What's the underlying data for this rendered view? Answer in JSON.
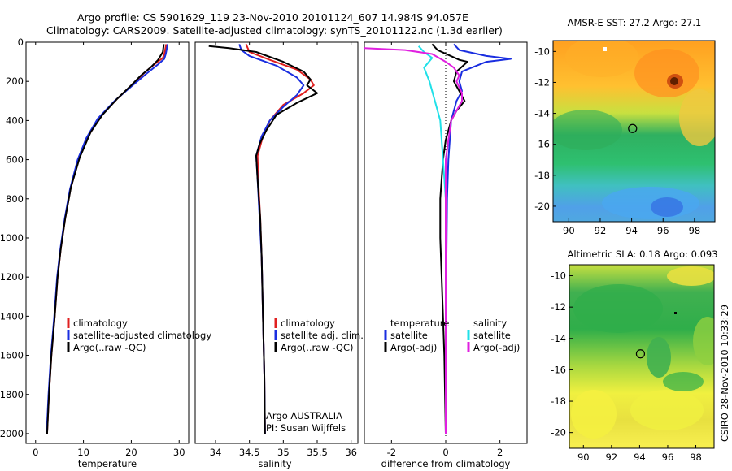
{
  "title_line1": "Argo profile: CS 5901629_119 23-Nov-2010 20101124_607 14.984S 94.057E",
  "title_line2": "Climatology: CARS2009. Satellite-adjusted climatology: synTS_20101122.nc (1.3d earlier)",
  "side_stamp": "CSIRO 28-Nov-2010 10:33:29",
  "argo_note_line1": "Argo AUSTRALIA",
  "argo_note_line2": "PI: Susan Wijffels",
  "colors": {
    "climatology": "#e02020",
    "satellite": "#1a2ee0",
    "argo": "#000000",
    "satellite_cyan": "#20e0e8",
    "argo_magenta": "#e020e0"
  },
  "chart_data": [
    {
      "type": "line",
      "xlabel": "temperature",
      "xlim": [
        -2,
        32
      ],
      "ylim": [
        2050,
        0
      ],
      "xticks": [
        0,
        10,
        20,
        30
      ],
      "yticks": [
        0,
        200,
        400,
        600,
        800,
        1000,
        1200,
        1400,
        1600,
        1800,
        2000
      ],
      "legend": [
        {
          "label": "climatology",
          "color": "#e02020"
        },
        {
          "label": "satellite-adjusted climatology",
          "color": "#1a2ee0"
        },
        {
          "label": "Argo(..raw -QC)",
          "color": "#000000"
        }
      ],
      "series": [
        {
          "name": "climatology",
          "color": "#e02020",
          "points": [
            [
              27.3,
              10
            ],
            [
              26.9,
              60
            ],
            [
              26.6,
              80
            ],
            [
              25.0,
              110
            ],
            [
              23.0,
              150
            ],
            [
              20.5,
              210
            ],
            [
              17.0,
              290
            ],
            [
              13.5,
              380
            ],
            [
              11.0,
              480
            ],
            [
              9.0,
              600
            ],
            [
              7.3,
              750
            ],
            [
              6.2,
              900
            ],
            [
              5.3,
              1050
            ],
            [
              4.6,
              1200
            ],
            [
              4.0,
              1400
            ],
            [
              3.3,
              1600
            ],
            [
              2.8,
              1800
            ],
            [
              2.4,
              2000
            ]
          ]
        },
        {
          "name": "satellite-adjusted climatology",
          "color": "#1a2ee0",
          "points": [
            [
              27.6,
              10
            ],
            [
              27.2,
              60
            ],
            [
              26.9,
              85
            ],
            [
              25.5,
              115
            ],
            [
              23.2,
              160
            ],
            [
              20.3,
              220
            ],
            [
              16.5,
              300
            ],
            [
              13.0,
              390
            ],
            [
              10.6,
              490
            ],
            [
              8.8,
              600
            ],
            [
              7.2,
              750
            ],
            [
              6.1,
              900
            ],
            [
              5.2,
              1050
            ],
            [
              4.5,
              1200
            ],
            [
              3.9,
              1400
            ],
            [
              3.2,
              1600
            ],
            [
              2.7,
              1800
            ],
            [
              2.3,
              2000
            ]
          ]
        },
        {
          "name": "Argo(..raw -QC)",
          "color": "#000000",
          "points": [
            [
              26.8,
              10
            ],
            [
              26.6,
              50
            ],
            [
              25.6,
              90
            ],
            [
              24.0,
              130
            ],
            [
              22.0,
              170
            ],
            [
              20.0,
              220
            ],
            [
              17.0,
              290
            ],
            [
              14.0,
              370
            ],
            [
              11.5,
              460
            ],
            [
              9.2,
              590
            ],
            [
              7.4,
              740
            ],
            [
              6.2,
              900
            ],
            [
              5.3,
              1050
            ],
            [
              4.6,
              1200
            ],
            [
              4.0,
              1400
            ],
            [
              3.3,
              1600
            ],
            [
              2.8,
              1800
            ],
            [
              2.4,
              2000
            ]
          ]
        }
      ]
    },
    {
      "type": "line",
      "xlabel": "salinity",
      "xlim": [
        33.7,
        36.1
      ],
      "ylim": [
        2050,
        0
      ],
      "xticks": [
        34,
        34.5,
        35,
        35.5,
        36
      ],
      "legend": [
        {
          "label": "climatology",
          "color": "#e02020"
        },
        {
          "label": "satellite adj. clim.",
          "color": "#1a2ee0"
        },
        {
          "label": "Argo(..raw -QC)",
          "color": "#000000"
        }
      ],
      "series": [
        {
          "name": "climatology",
          "color": "#e02020",
          "points": [
            [
              34.45,
              10
            ],
            [
              34.5,
              50
            ],
            [
              34.8,
              90
            ],
            [
              35.2,
              140
            ],
            [
              35.4,
              190
            ],
            [
              35.45,
              220
            ],
            [
              35.3,
              260
            ],
            [
              35.0,
              320
            ],
            [
              34.8,
              400
            ],
            [
              34.7,
              480
            ],
            [
              34.62,
              580
            ],
            [
              34.63,
              700
            ],
            [
              34.66,
              900
            ],
            [
              34.68,
              1100
            ],
            [
              34.7,
              1400
            ],
            [
              34.72,
              1700
            ],
            [
              34.73,
              2000
            ]
          ]
        },
        {
          "name": "satellite adj. clim.",
          "color": "#1a2ee0",
          "points": [
            [
              34.35,
              10
            ],
            [
              34.38,
              40
            ],
            [
              34.5,
              70
            ],
            [
              34.9,
              120
            ],
            [
              35.2,
              180
            ],
            [
              35.3,
              220
            ],
            [
              35.2,
              270
            ],
            [
              35.0,
              330
            ],
            [
              34.8,
              400
            ],
            [
              34.68,
              480
            ],
            [
              34.6,
              580
            ],
            [
              34.62,
              700
            ],
            [
              34.65,
              900
            ],
            [
              34.68,
              1100
            ],
            [
              34.7,
              1400
            ],
            [
              34.72,
              1700
            ],
            [
              34.73,
              2000
            ]
          ]
        },
        {
          "name": "Argo(..raw -QC)",
          "color": "#000000",
          "points": [
            [
              33.9,
              20
            ],
            [
              34.2,
              30
            ],
            [
              34.6,
              50
            ],
            [
              35.0,
              100
            ],
            [
              35.3,
              150
            ],
            [
              35.4,
              190
            ],
            [
              35.35,
              220
            ],
            [
              35.5,
              260
            ],
            [
              35.2,
              310
            ],
            [
              34.9,
              370
            ],
            [
              34.75,
              450
            ],
            [
              34.65,
              520
            ],
            [
              34.6,
              580
            ],
            [
              34.62,
              700
            ],
            [
              34.66,
              900
            ],
            [
              34.68,
              1100
            ],
            [
              34.7,
              1400
            ],
            [
              34.72,
              1700
            ],
            [
              34.73,
              2000
            ]
          ]
        }
      ]
    },
    {
      "type": "line",
      "xlabel": "difference from climatology",
      "xlim": [
        -3,
        3
      ],
      "ylim": [
        2050,
        0
      ],
      "xticks": [
        -2,
        0,
        2
      ],
      "legend": [
        {
          "label": "temperature",
          "color": ""
        },
        {
          "label": "satellite",
          "color": "#1a2ee0"
        },
        {
          "label": "Argo(-adj)",
          "color": "#000000"
        },
        {
          "label": "salinity",
          "color": ""
        },
        {
          "label": "satellite",
          "color": "#20e0e8"
        },
        {
          "label": "Argo(-adj)",
          "color": "#e020e0"
        }
      ],
      "series": [
        {
          "name": "temperature satellite",
          "color": "#1a2ee0",
          "points": [
            [
              0.3,
              10
            ],
            [
              0.5,
              40
            ],
            [
              1.5,
              70
            ],
            [
              2.4,
              85
            ],
            [
              1.5,
              100
            ],
            [
              0.6,
              150
            ],
            [
              0.5,
              200
            ],
            [
              0.6,
              250
            ],
            [
              0.4,
              300
            ],
            [
              0.2,
              400
            ],
            [
              0.1,
              600
            ],
            [
              0.05,
              800
            ],
            [
              0.02,
              1200
            ],
            [
              0.01,
              2000
            ]
          ]
        },
        {
          "name": "temperature Argo(-adj)",
          "color": "#000000",
          "points": [
            [
              -0.5,
              10
            ],
            [
              -0.3,
              40
            ],
            [
              0.5,
              90
            ],
            [
              0.8,
              100
            ],
            [
              0.4,
              150
            ],
            [
              0.3,
              200
            ],
            [
              0.5,
              250
            ],
            [
              0.7,
              300
            ],
            [
              0.4,
              350
            ],
            [
              0.2,
              400
            ],
            [
              0,
              500
            ],
            [
              -0.1,
              600
            ],
            [
              -0.2,
              800
            ],
            [
              -0.2,
              1000
            ],
            [
              -0.15,
              1200
            ],
            [
              -0.1,
              1400
            ],
            [
              -0.05,
              1600
            ],
            [
              0,
              2000
            ]
          ]
        },
        {
          "name": "salinity satellite",
          "color": "#20e0e8",
          "points": [
            [
              -1.0,
              20
            ],
            [
              -0.8,
              50
            ],
            [
              -0.5,
              80
            ],
            [
              -0.8,
              130
            ],
            [
              -0.6,
              200
            ],
            [
              -0.4,
              300
            ],
            [
              -0.2,
              400
            ],
            [
              -0.1,
              600
            ],
            [
              0,
              800
            ],
            [
              0,
              1000
            ],
            [
              0,
              1400
            ],
            [
              0,
              2000
            ]
          ]
        },
        {
          "name": "salinity Argo(-adj)",
          "color": "#e020e0",
          "points": [
            [
              -3,
              30
            ],
            [
              -1.5,
              40
            ],
            [
              -0.5,
              60
            ],
            [
              0.0,
              100
            ],
            [
              0.3,
              130
            ],
            [
              0.5,
              170
            ],
            [
              0.4,
              200
            ],
            [
              0.6,
              260
            ],
            [
              0.6,
              300
            ],
            [
              0.4,
              350
            ],
            [
              0.2,
              400
            ],
            [
              0.1,
              500
            ],
            [
              0,
              600
            ],
            [
              0,
              1000
            ],
            [
              0,
              1400
            ],
            [
              0,
              2000
            ]
          ]
        }
      ]
    },
    {
      "type": "heatmap",
      "title": "AMSR-E SST: 27.2 Argo: 27.1",
      "xlim": [
        89,
        99.3
      ],
      "ylim": [
        -21,
        -9.3
      ],
      "xticks": [
        90,
        92,
        94,
        96,
        98
      ],
      "yticks": [
        -10,
        -12,
        -14,
        -16,
        -18,
        -20
      ],
      "marker": [
        94.06,
        -14.98
      ]
    },
    {
      "type": "heatmap",
      "title": "Altimetric SLA: 0.18 Argo: 0.093",
      "xlim": [
        89,
        99.3
      ],
      "ylim": [
        -21,
        -9.3
      ],
      "xticks": [
        90,
        92,
        94,
        96,
        98
      ],
      "yticks": [
        -10,
        -12,
        -14,
        -16,
        -18,
        -20
      ],
      "marker": [
        94.06,
        -14.98
      ]
    }
  ]
}
